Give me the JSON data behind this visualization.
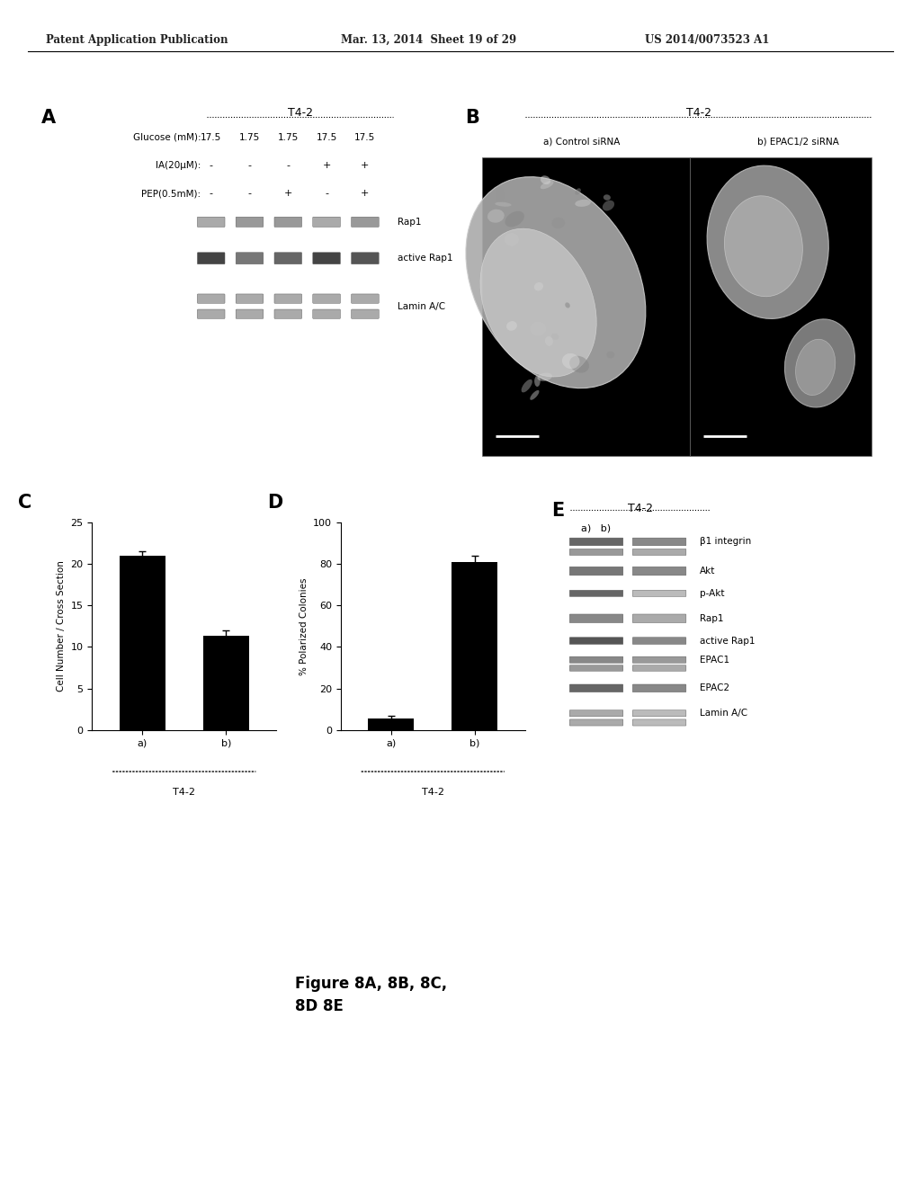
{
  "header_left": "Patent Application Publication",
  "header_mid": "Mar. 13, 2014  Sheet 19 of 29",
  "header_right": "US 2014/0073523 A1",
  "panel_A": {
    "label": "A",
    "title": "T4-2",
    "glucose_label": "Glucose (mM):",
    "glucose_vals": [
      "17.5",
      "1.75",
      "1.75",
      "17.5",
      "17.5"
    ],
    "ia_label": "IA(20μM):",
    "ia_vals": [
      "-",
      "-",
      "-",
      "+",
      "+"
    ],
    "pep_label": "PEP(0.5mM):",
    "pep_vals": [
      "-",
      "-",
      "+",
      "-",
      "+"
    ],
    "bands": [
      "Rap1",
      "active Rap1",
      "Lamin A/C"
    ]
  },
  "panel_B": {
    "label": "B",
    "title": "T4-2",
    "sub_a": "a) Control siRNA",
    "sub_b": "b) EPAC1/2 siRNA"
  },
  "panel_C": {
    "label": "C",
    "bar_values": [
      21.0,
      11.3
    ],
    "bar_errors": [
      0.5,
      0.7
    ],
    "categories": [
      "a)",
      "b)"
    ],
    "xlabel": "T4-2",
    "ylabel": "Cell Number / Cross Section",
    "ylim": [
      0,
      25
    ],
    "yticks": [
      0,
      5,
      10,
      15,
      20,
      25
    ],
    "bar_color": "#000000"
  },
  "panel_D": {
    "label": "D",
    "bar_values": [
      5.5,
      81.0
    ],
    "bar_errors": [
      1.2,
      3.0
    ],
    "categories": [
      "a)",
      "b)"
    ],
    "xlabel": "T4-2",
    "ylabel": "% Polarized Colonies",
    "ylim": [
      0,
      100
    ],
    "yticks": [
      0,
      20,
      40,
      60,
      80,
      100
    ],
    "bar_color": "#000000"
  },
  "panel_E": {
    "label": "E",
    "title": "T4-2",
    "sub_labels": "a)   b)",
    "bands": [
      "β1 integrin",
      "Akt",
      "p-Akt",
      "Rap1",
      "active Rap1",
      "EPAC1",
      "EPAC2",
      "Lamin A/C"
    ]
  },
  "figure_caption": "Figure 8A, 8B, 8C,\n8D 8E",
  "bg_color": "#ffffff",
  "text_color": "#000000"
}
